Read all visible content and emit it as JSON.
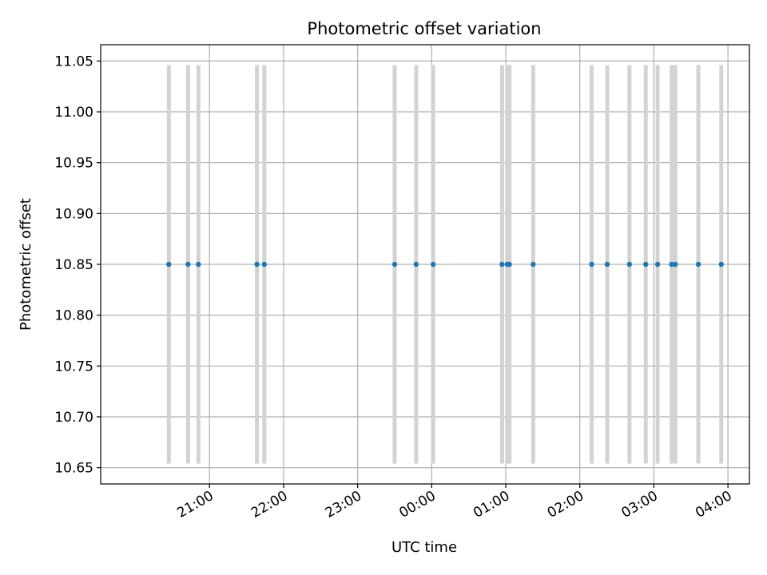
{
  "chart_data": {
    "type": "scatter",
    "title": "Photometric offset variation",
    "xlabel": "UTC time",
    "ylabel": "Photometric offset",
    "x_unit": "hours (UTC, continuing past midnight)",
    "x": [
      20.45,
      20.71,
      20.85,
      21.64,
      21.74,
      23.5,
      23.79,
      24.02,
      24.95,
      25.02,
      25.05,
      25.37,
      26.16,
      26.37,
      26.67,
      26.89,
      27.05,
      27.24,
      27.29,
      27.6,
      27.91
    ],
    "y": [
      10.85,
      10.85,
      10.85,
      10.85,
      10.85,
      10.85,
      10.85,
      10.85,
      10.85,
      10.85,
      10.85,
      10.85,
      10.85,
      10.85,
      10.85,
      10.85,
      10.85,
      10.85,
      10.85,
      10.85,
      10.85
    ],
    "yerr": 0.196,
    "xlim": [
      19.53,
      28.29
    ],
    "ylim": [
      10.634,
      11.066
    ],
    "xticks": [
      21,
      22,
      23,
      24,
      25,
      26,
      27,
      28
    ],
    "xtick_labels": [
      "21:00",
      "22:00",
      "23:00",
      "00:00",
      "01:00",
      "02:00",
      "03:00",
      "04:00"
    ],
    "yticks": [
      10.65,
      10.7,
      10.75,
      10.8,
      10.85,
      10.9,
      10.95,
      11.0,
      11.05
    ],
    "ytick_labels": [
      "10.65",
      "10.70",
      "10.75",
      "10.80",
      "10.85",
      "10.90",
      "10.95",
      "11.00",
      "11.05"
    ],
    "grid": true,
    "colors": {
      "marker": "#1f77b4",
      "errorbar": "#d3d3d3",
      "grid": "#b0b0b0"
    }
  }
}
